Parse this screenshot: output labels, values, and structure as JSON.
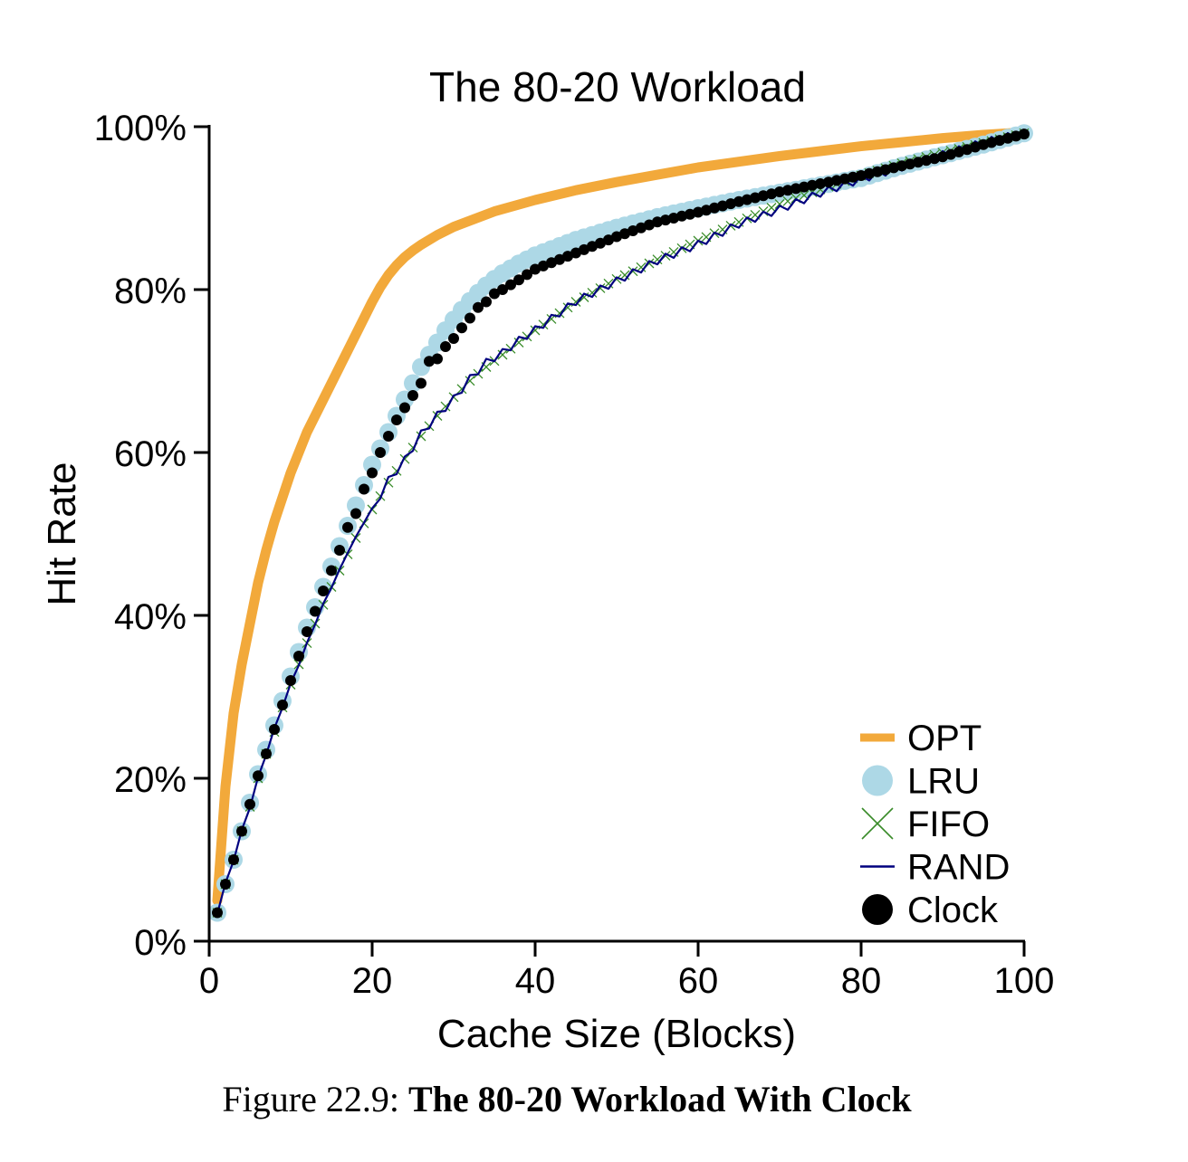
{
  "chart_data": {
    "type": "line",
    "title": "The 80-20 Workload",
    "xlabel": "Cache Size (Blocks)",
    "ylabel": "Hit Rate",
    "xlim": [
      0,
      100
    ],
    "ylim": [
      0,
      100
    ],
    "x_ticks": [
      0,
      20,
      40,
      60,
      80,
      100
    ],
    "x_tick_labels": [
      "0",
      "20",
      "40",
      "60",
      "80",
      "100"
    ],
    "y_ticks": [
      0,
      20,
      40,
      60,
      80,
      100
    ],
    "y_tick_labels": [
      "0%",
      "20%",
      "40%",
      "60%",
      "80%",
      "100%"
    ],
    "grid": false,
    "legend_position": "bottom-right",
    "anchors": {
      "OPT": [
        [
          1,
          5
        ],
        [
          2,
          19
        ],
        [
          3,
          28
        ],
        [
          4,
          34
        ],
        [
          5,
          39
        ],
        [
          6,
          44
        ],
        [
          7,
          48
        ],
        [
          8,
          51.5
        ],
        [
          9,
          54.5
        ],
        [
          10,
          57.5
        ],
        [
          11,
          60
        ],
        [
          12,
          62.5
        ],
        [
          13,
          64.5
        ],
        [
          14,
          66.5
        ],
        [
          15,
          68.5
        ],
        [
          16,
          70.5
        ],
        [
          17,
          72.5
        ],
        [
          18,
          74.5
        ],
        [
          19,
          76.5
        ],
        [
          20,
          78.5
        ],
        [
          21,
          80.3
        ],
        [
          22,
          81.8
        ],
        [
          23,
          83
        ],
        [
          24,
          84
        ],
        [
          25,
          84.8
        ],
        [
          26,
          85.5
        ],
        [
          28,
          86.7
        ],
        [
          30,
          87.7
        ],
        [
          35,
          89.6
        ],
        [
          40,
          91
        ],
        [
          45,
          92.2
        ],
        [
          50,
          93.2
        ],
        [
          55,
          94.1
        ],
        [
          60,
          95
        ],
        [
          65,
          95.7
        ],
        [
          70,
          96.4
        ],
        [
          75,
          97
        ],
        [
          80,
          97.6
        ],
        [
          85,
          98.1
        ],
        [
          90,
          98.6
        ],
        [
          95,
          99
        ],
        [
          100,
          99.3
        ]
      ],
      "LRU": [
        [
          1,
          3.5
        ],
        [
          2,
          7
        ],
        [
          3,
          10
        ],
        [
          4,
          13.5
        ],
        [
          5,
          17
        ],
        [
          6,
          20.5
        ],
        [
          7,
          23.5
        ],
        [
          8,
          26.5
        ],
        [
          9,
          29.5
        ],
        [
          10,
          32.5
        ],
        [
          11,
          35.5
        ],
        [
          12,
          38.5
        ],
        [
          13,
          41
        ],
        [
          14,
          43.5
        ],
        [
          15,
          46
        ],
        [
          16,
          48.5
        ],
        [
          17,
          51
        ],
        [
          18,
          53.5
        ],
        [
          19,
          56
        ],
        [
          20,
          58.5
        ],
        [
          21,
          60.5
        ],
        [
          22,
          62.5
        ],
        [
          23,
          64.5
        ],
        [
          24,
          66.5
        ],
        [
          25,
          68.5
        ],
        [
          26,
          70.5
        ],
        [
          27,
          72
        ],
        [
          28,
          73.5
        ],
        [
          29,
          75
        ],
        [
          30,
          76.3
        ],
        [
          31,
          77.5
        ],
        [
          32,
          78.6
        ],
        [
          33,
          79.6
        ],
        [
          34,
          80.5
        ],
        [
          35,
          81.3
        ],
        [
          36,
          82
        ],
        [
          38,
          83.2
        ],
        [
          40,
          84.2
        ],
        [
          45,
          86.1
        ],
        [
          50,
          87.6
        ],
        [
          55,
          88.9
        ],
        [
          60,
          90
        ],
        [
          65,
          91
        ],
        [
          70,
          91.9
        ],
        [
          75,
          92.8
        ],
        [
          80,
          93.7
        ],
        [
          85,
          95.2
        ],
        [
          90,
          96.5
        ],
        [
          95,
          97.8
        ],
        [
          100,
          99.2
        ]
      ],
      "CLOCK": [
        [
          1,
          3.5
        ],
        [
          2,
          7
        ],
        [
          3,
          10
        ],
        [
          4,
          13.5
        ],
        [
          5,
          16.8
        ],
        [
          6,
          20.3
        ],
        [
          7,
          23
        ],
        [
          8,
          26
        ],
        [
          9,
          29
        ],
        [
          10,
          32
        ],
        [
          11,
          35
        ],
        [
          12,
          38
        ],
        [
          13,
          40.5
        ],
        [
          14,
          43
        ],
        [
          15,
          45.5
        ],
        [
          16,
          48
        ],
        [
          17,
          50.8
        ],
        [
          18,
          52.5
        ],
        [
          19,
          55.5
        ],
        [
          20,
          57.5
        ],
        [
          21,
          60
        ],
        [
          22,
          62
        ],
        [
          23,
          64
        ],
        [
          24,
          65.5
        ],
        [
          25,
          67
        ],
        [
          26,
          68.5
        ],
        [
          27,
          71.2
        ],
        [
          28,
          71.5
        ],
        [
          29,
          73
        ],
        [
          30,
          74
        ],
        [
          31,
          75.3
        ],
        [
          32,
          76.5
        ],
        [
          33,
          77.8
        ],
        [
          34,
          78.5
        ],
        [
          35,
          79.5
        ],
        [
          36,
          80
        ],
        [
          38,
          81.2
        ],
        [
          40,
          82.5
        ],
        [
          45,
          84.5
        ],
        [
          50,
          86.5
        ],
        [
          55,
          88.3
        ],
        [
          60,
          89.5
        ],
        [
          65,
          90.8
        ],
        [
          70,
          92
        ],
        [
          75,
          93
        ],
        [
          80,
          94
        ],
        [
          85,
          95.2
        ],
        [
          90,
          96.3
        ],
        [
          95,
          97.8
        ],
        [
          100,
          99.1
        ]
      ],
      "FIFO": [
        [
          1,
          3.5
        ],
        [
          2,
          7
        ],
        [
          3,
          10
        ],
        [
          4,
          13.5
        ],
        [
          5,
          16.5
        ],
        [
          6,
          20
        ],
        [
          7,
          23
        ],
        [
          8,
          25.7
        ],
        [
          9,
          28.7
        ],
        [
          10,
          31.5
        ],
        [
          11,
          34
        ],
        [
          12,
          36.6
        ],
        [
          13,
          39
        ],
        [
          14,
          41.3
        ],
        [
          15,
          43.5
        ],
        [
          16,
          45.5
        ],
        [
          17,
          47.5
        ],
        [
          18,
          49.5
        ],
        [
          19,
          51.3
        ],
        [
          20,
          53
        ],
        [
          22,
          56.3
        ],
        [
          24,
          59.2
        ],
        [
          26,
          62
        ],
        [
          28,
          64.5
        ],
        [
          30,
          66.8
        ],
        [
          32,
          68.8
        ],
        [
          34,
          70.5
        ],
        [
          36,
          72
        ],
        [
          38,
          73.5
        ],
        [
          40,
          75
        ],
        [
          45,
          78.5
        ],
        [
          50,
          81.3
        ],
        [
          55,
          83.7
        ],
        [
          60,
          86
        ],
        [
          65,
          88.3
        ],
        [
          70,
          90.5
        ],
        [
          75,
          92.3
        ],
        [
          80,
          94
        ],
        [
          85,
          95.5
        ],
        [
          90,
          96.8
        ],
        [
          95,
          98
        ],
        [
          100,
          99.2
        ]
      ],
      "RAND": [
        [
          1,
          3.5
        ],
        [
          2,
          7
        ],
        [
          3,
          10
        ],
        [
          4,
          13.5
        ],
        [
          5,
          16.5
        ],
        [
          6,
          20
        ],
        [
          7,
          23
        ],
        [
          8,
          26
        ],
        [
          9,
          28.8
        ],
        [
          10,
          31.5
        ],
        [
          11,
          34
        ],
        [
          12,
          36.5
        ],
        [
          13,
          39
        ],
        [
          14,
          41.3
        ],
        [
          15,
          43.5
        ],
        [
          16,
          45.5
        ],
        [
          17,
          47.8
        ],
        [
          18,
          49.5
        ],
        [
          19,
          51.5
        ],
        [
          20,
          53
        ],
        [
          22,
          56.5
        ],
        [
          24,
          59
        ],
        [
          26,
          62.2
        ],
        [
          28,
          64.5
        ],
        [
          30,
          66.5
        ],
        [
          32,
          69
        ],
        [
          34,
          71
        ],
        [
          36,
          72.2
        ],
        [
          38,
          73.7
        ],
        [
          40,
          75
        ],
        [
          45,
          78.5
        ],
        [
          50,
          81
        ],
        [
          55,
          83.5
        ],
        [
          60,
          85.5
        ],
        [
          65,
          88
        ],
        [
          70,
          89.8
        ],
        [
          75,
          91.8
        ],
        [
          80,
          93.5
        ],
        [
          85,
          95
        ],
        [
          90,
          96.5
        ],
        [
          95,
          98
        ],
        [
          100,
          99.2
        ]
      ]
    },
    "series": [
      {
        "name": "OPT",
        "style": "line",
        "color": "#f2a93b"
      },
      {
        "name": "LRU",
        "style": "circle-marker",
        "color": "#add8e6"
      },
      {
        "name": "FIFO",
        "style": "x-marker",
        "color": "#3a8c2a"
      },
      {
        "name": "RAND",
        "style": "line",
        "color": "#00007f"
      },
      {
        "name": "Clock",
        "style": "dot-marker",
        "color": "#000000"
      }
    ]
  },
  "caption": {
    "prefix": "Figure 22.9:",
    "title": "The 80-20 Workload With Clock"
  }
}
